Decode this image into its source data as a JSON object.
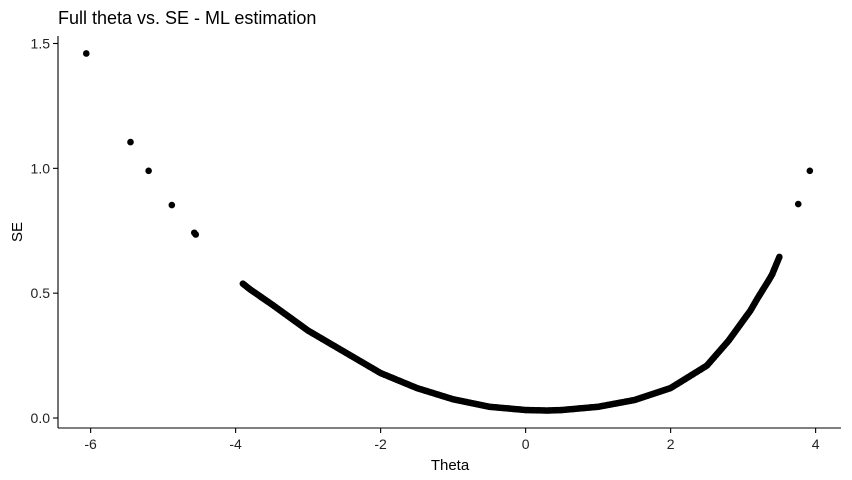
{
  "chart_data": {
    "type": "scatter",
    "title": "Full theta vs. SE - ML estimation",
    "xlabel": "Theta",
    "ylabel": "SE",
    "xlim": [
      -6.45,
      4.35
    ],
    "ylim": [
      -0.04,
      1.53
    ],
    "x_ticks": [
      -6,
      -4,
      -2,
      0,
      2,
      4
    ],
    "y_ticks": [
      0.0,
      0.5,
      1.0,
      1.5
    ],
    "x_tick_labels": [
      "-6",
      "-4",
      "-2",
      "0",
      "2",
      "4"
    ],
    "y_tick_labels": [
      "0.0",
      "0.5",
      "1.0",
      "1.5"
    ],
    "grid": false,
    "legend": "none",
    "point_color": "#000000",
    "discrete_points": [
      {
        "x": -6.06,
        "y": 1.46
      },
      {
        "x": -5.45,
        "y": 1.105
      },
      {
        "x": -5.2,
        "y": 0.99
      },
      {
        "x": -4.88,
        "y": 0.853
      },
      {
        "x": -4.57,
        "y": 0.742
      },
      {
        "x": -4.55,
        "y": 0.735
      },
      {
        "x": 3.76,
        "y": 0.857
      },
      {
        "x": 3.92,
        "y": 0.99
      }
    ],
    "dense_curve": [
      {
        "x": -3.9,
        "y": 0.538
      },
      {
        "x": -3.8,
        "y": 0.515
      },
      {
        "x": -3.5,
        "y": 0.455
      },
      {
        "x": -3.0,
        "y": 0.35
      },
      {
        "x": -2.5,
        "y": 0.265
      },
      {
        "x": -2.0,
        "y": 0.18
      },
      {
        "x": -1.5,
        "y": 0.12
      },
      {
        "x": -1.0,
        "y": 0.075
      },
      {
        "x": -0.5,
        "y": 0.045
      },
      {
        "x": 0.0,
        "y": 0.032
      },
      {
        "x": 0.3,
        "y": 0.03
      },
      {
        "x": 0.5,
        "y": 0.032
      },
      {
        "x": 1.0,
        "y": 0.045
      },
      {
        "x": 1.5,
        "y": 0.072
      },
      {
        "x": 2.0,
        "y": 0.12
      },
      {
        "x": 2.5,
        "y": 0.21
      },
      {
        "x": 2.8,
        "y": 0.31
      },
      {
        "x": 3.0,
        "y": 0.39
      },
      {
        "x": 3.1,
        "y": 0.43
      },
      {
        "x": 3.2,
        "y": 0.48
      },
      {
        "x": 3.35,
        "y": 0.55
      },
      {
        "x": 3.4,
        "y": 0.575
      },
      {
        "x": 3.5,
        "y": 0.645
      }
    ]
  }
}
